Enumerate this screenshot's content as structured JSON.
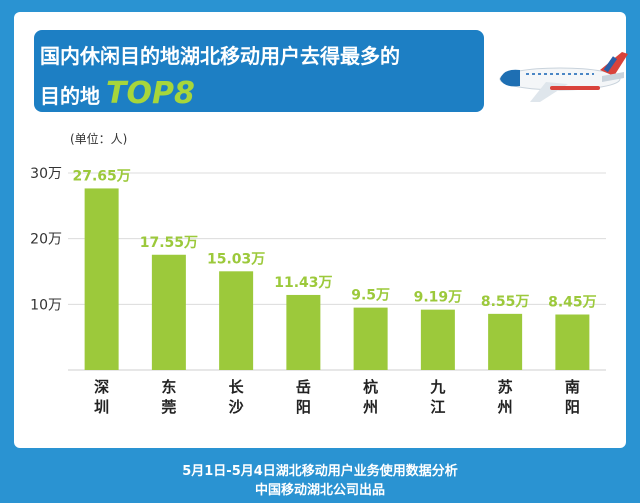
{
  "header": {
    "title_line1": "国内休闲目的地湖北移动用户去得最多的",
    "title_line2": "目的地",
    "title_highlight": "TOP8"
  },
  "unit_label": "(单位：人)",
  "footer": {
    "line1": "5月1日-5月4日湖北移动用户业务使用数据分析",
    "line2": "中国移动湖北公司出品"
  },
  "colors": {
    "background": "#2a93d2",
    "header": "#1d7fc4",
    "bar": "#9cc93b",
    "value_label": "#9cc93b"
  },
  "chart_data": {
    "type": "bar",
    "categories": [
      "深圳",
      "东莞",
      "长沙",
      "岳阳",
      "杭州",
      "九江",
      "苏州",
      "南阳"
    ],
    "values": [
      27.65,
      17.55,
      15.03,
      11.43,
      9.5,
      9.19,
      8.55,
      8.45
    ],
    "value_labels": [
      "27.65万",
      "17.55万",
      "15.03万",
      "11.43万",
      "9.5万",
      "9.19万",
      "8.55万",
      "8.45万"
    ],
    "yticks": [
      {
        "value": 10,
        "label": "10万"
      },
      {
        "value": 20,
        "label": "20万"
      },
      {
        "value": 30,
        "label": "30万"
      }
    ],
    "ylim": [
      0,
      30
    ],
    "grid": true
  }
}
